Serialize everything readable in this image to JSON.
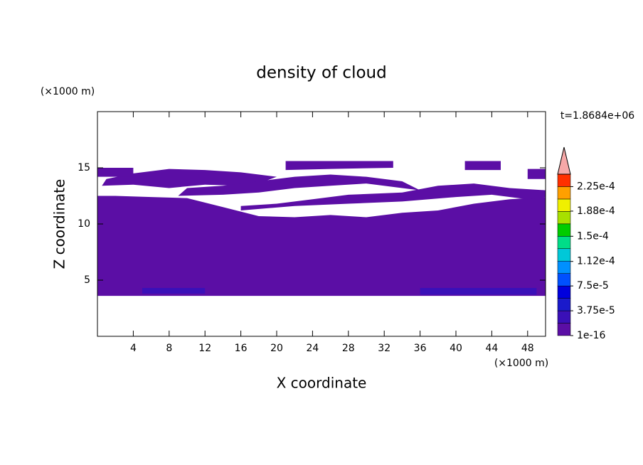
{
  "chart_data": {
    "type": "contour",
    "title": "density of cloud",
    "x_label": "X coordinate",
    "y_label": "Z coordinate",
    "x_unit": "(×1000 m)",
    "y_unit": "(×1000 m)",
    "time_label": "t=1.8684e+06",
    "xlim": [
      0,
      50
    ],
    "ylim": [
      0,
      20
    ],
    "xticks": [
      4,
      8,
      12,
      16,
      20,
      24,
      28,
      32,
      36,
      40,
      44,
      48
    ],
    "yticks": [
      5,
      10,
      15
    ],
    "colorbar": {
      "colors": [
        "#5b0ea5",
        "#3a10b8",
        "#1a1acb",
        "#0000dd",
        "#0050ff",
        "#0090ff",
        "#00c8d8",
        "#00dd88",
        "#00cc00",
        "#a8e000",
        "#f0f000",
        "#ffa000",
        "#ff3000"
      ],
      "extend_color": "#f6a8a8",
      "clim": [
        1e-16,
        0.00024375
      ],
      "ticks": [
        1e-16,
        {
          "value": 3.75e-05,
          "label": "3.75e-5"
        },
        {
          "value": 7.5e-05,
          "label": "7.5e-5"
        },
        {
          "value": 0.000112,
          "label": "1.12e-4"
        },
        {
          "value": 0.00015,
          "label": "1.5e-4"
        },
        {
          "value": 0.000188,
          "label": "1.88e-4"
        },
        {
          "value": 0.000225,
          "label": "2.25e-4"
        }
      ]
    },
    "regions": [
      {
        "level": 0,
        "x": [
          0,
          50,
          50,
          46,
          42,
          38,
          34,
          30,
          26,
          22,
          18,
          14,
          10,
          6,
          2,
          0
        ],
        "z": [
          3.6,
          3.6,
          12.4,
          12.2,
          11.8,
          11.2,
          11.0,
          10.6,
          10.8,
          10.6,
          10.7,
          11.5,
          12.3,
          12.4,
          12.5,
          12.5
        ]
      },
      {
        "level": 0,
        "x": [
          16,
          22,
          28,
          34,
          40,
          44,
          48,
          50,
          50,
          46,
          42,
          38,
          34,
          28,
          24,
          20,
          16
        ],
        "z": [
          11.2,
          11.6,
          11.8,
          12.0,
          12.4,
          12.6,
          12.2,
          12.4,
          13.0,
          13.2,
          13.6,
          13.4,
          12.8,
          12.6,
          12.2,
          11.8,
          11.6
        ]
      },
      {
        "level": 0,
        "x": [
          0.5,
          4,
          8,
          12,
          16,
          18,
          20,
          16,
          12,
          8,
          4,
          1
        ],
        "z": [
          13.4,
          13.5,
          13.2,
          13.5,
          13.4,
          13.6,
          14.2,
          14.6,
          14.8,
          14.9,
          14.5,
          14.0
        ]
      },
      {
        "level": 0,
        "x": [
          9,
          14,
          18,
          22,
          26,
          30,
          34,
          36,
          34,
          30,
          26,
          22,
          18,
          14,
          10
        ],
        "z": [
          12.5,
          12.6,
          12.8,
          13.2,
          13.4,
          13.6,
          13.2,
          13.0,
          13.8,
          14.2,
          14.4,
          14.2,
          13.8,
          13.4,
          13.2
        ]
      },
      {
        "level": 0,
        "x": [
          21,
          26,
          33,
          33,
          21
        ],
        "z": [
          14.8,
          14.9,
          15.0,
          15.6,
          15.6
        ]
      },
      {
        "level": 0,
        "x": [
          0,
          4,
          4,
          0
        ],
        "z": [
          14.2,
          14.2,
          15.0,
          15.0
        ]
      },
      {
        "level": 0,
        "x": [
          41,
          45,
          45,
          41
        ],
        "z": [
          14.8,
          14.8,
          15.6,
          15.6
        ]
      },
      {
        "level": 0,
        "x": [
          48,
          50,
          50,
          48
        ],
        "z": [
          14.0,
          14.0,
          14.9,
          14.9
        ]
      },
      {
        "level": 1,
        "x": [
          5,
          12,
          12,
          5
        ],
        "z": [
          3.8,
          3.8,
          4.3,
          4.3
        ]
      },
      {
        "level": 1,
        "x": [
          36,
          49,
          49,
          36
        ],
        "z": [
          3.7,
          3.7,
          4.3,
          4.3
        ]
      }
    ]
  }
}
